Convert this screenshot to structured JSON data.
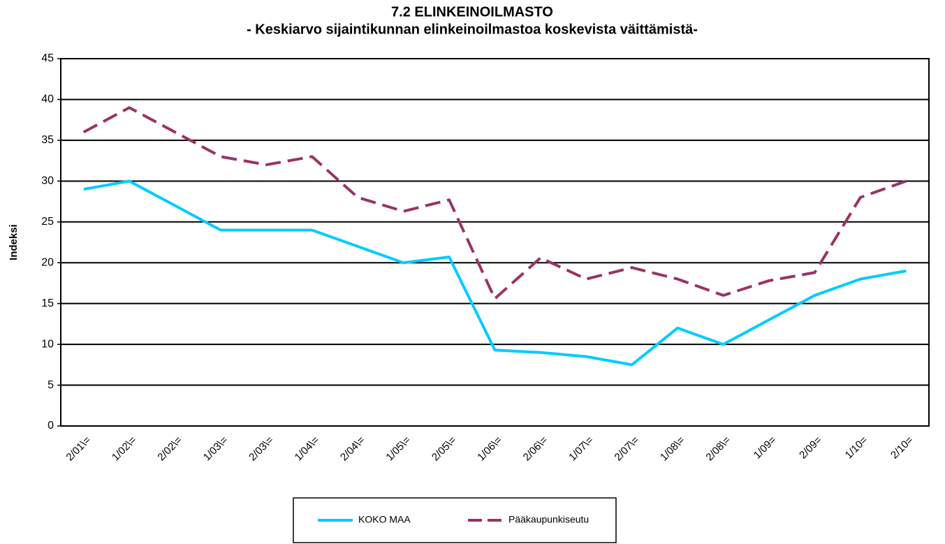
{
  "chart_data": {
    "type": "line",
    "title": "7.2 ELINKEINOILMASTO",
    "subtitle": "- Keskiarvo sijaintikunnan elinkeinoilmastoa koskevista väittämistä-",
    "ylabel": "Indeksi",
    "categories": [
      "2/01\\=",
      "1/02\\=",
      "2/02\\=",
      "1/03\\=",
      "2/03\\=",
      "1/04\\=",
      "2/04\\=",
      "1/05\\=",
      "2/05\\=",
      "1/06\\=",
      "2/06\\=",
      "1/07\\=",
      "2/07\\=",
      "1/08\\=",
      "2/08\\=",
      "1/09=",
      "2/09=",
      "1/10=",
      "2/10="
    ],
    "series": [
      {
        "name": "KOKO MAA",
        "color": "#00ccff",
        "dashed": false,
        "values": [
          29,
          30,
          27,
          24,
          24,
          24,
          22,
          20,
          20.7,
          9.3,
          9,
          8.5,
          7.5,
          12,
          10,
          13,
          16,
          18,
          19
        ]
      },
      {
        "name": "Pääkaupunkiseutu",
        "color": "#993366",
        "dashed": true,
        "values": [
          36,
          39,
          36,
          33,
          32,
          33,
          28,
          26.3,
          27.7,
          15.6,
          20.6,
          18,
          19.4,
          18,
          16,
          17.8,
          18.8,
          28,
          30
        ]
      }
    ],
    "ylim": [
      0,
      45
    ],
    "yticks": [
      0,
      5,
      10,
      15,
      20,
      25,
      30,
      35,
      40,
      45
    ],
    "grid": true,
    "legend": "bottom"
  }
}
